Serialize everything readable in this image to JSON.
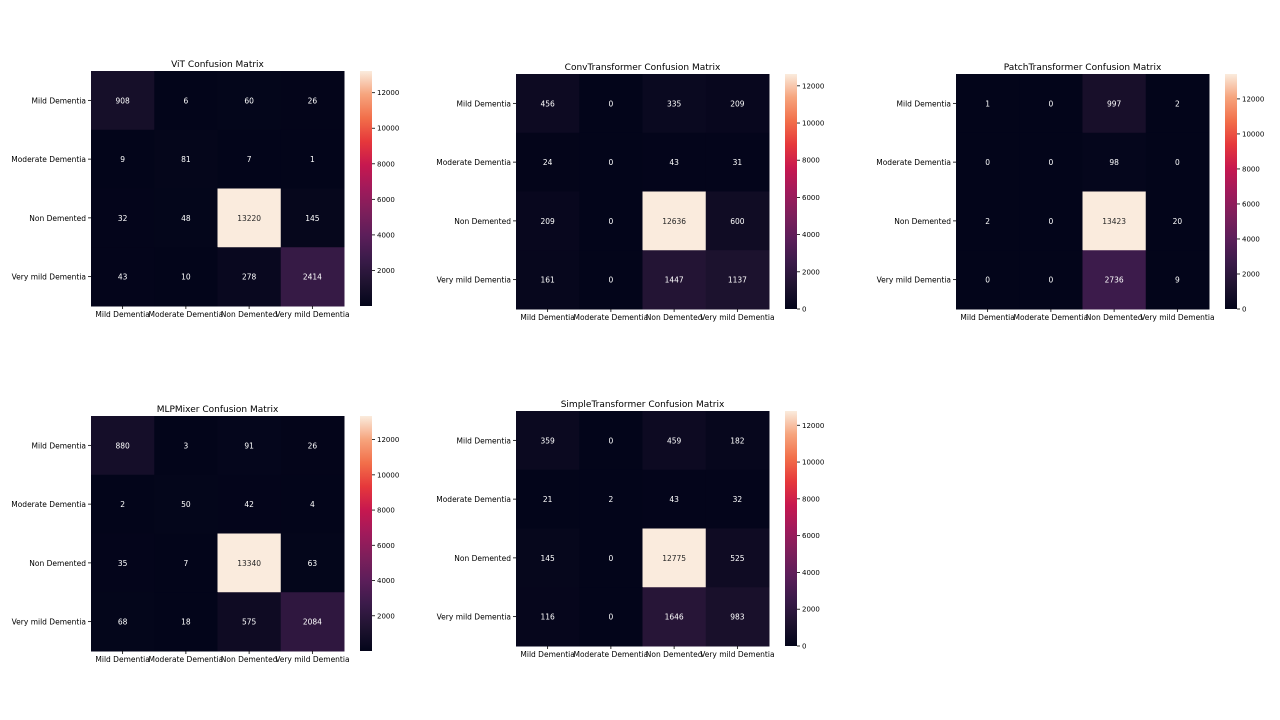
{
  "chart_data": [
    {
      "type": "heatmap",
      "title": "ViT Confusion Matrix",
      "row_labels": [
        "Mild Dementia",
        "Moderate Dementia",
        "Non Demented",
        "Very mild Dementia"
      ],
      "col_labels": [
        "Mild Dementia",
        "Moderate Dementia",
        "Non Demented",
        "Very mild Dementia"
      ],
      "values": [
        [
          908,
          6,
          60,
          26
        ],
        [
          9,
          81,
          7,
          1
        ],
        [
          32,
          48,
          13220,
          145
        ],
        [
          43,
          10,
          278,
          2414
        ]
      ],
      "colorbar_ticks": [
        2000,
        4000,
        6000,
        8000,
        10000,
        12000
      ],
      "colormap": "rocket",
      "vmin": 0,
      "vmax": 13220
    },
    {
      "type": "heatmap",
      "title": "ConvTransformer Confusion Matrix",
      "row_labels": [
        "Mild Dementia",
        "Moderate Dementia",
        "Non Demented",
        "Very mild Dementia"
      ],
      "col_labels": [
        "Mild Dementia",
        "Moderate Dementia",
        "Non Demented",
        "Very mild Dementia"
      ],
      "values": [
        [
          456,
          0,
          335,
          209
        ],
        [
          24,
          0,
          43,
          31
        ],
        [
          209,
          0,
          12636,
          600
        ],
        [
          161,
          0,
          1447,
          1137
        ]
      ],
      "colorbar_ticks": [
        0,
        2000,
        4000,
        6000,
        8000,
        10000,
        12000
      ],
      "colormap": "rocket",
      "vmin": 0,
      "vmax": 12636
    },
    {
      "type": "heatmap",
      "title": "PatchTransformer Confusion Matrix",
      "row_labels": [
        "Mild Dementia",
        "Moderate Dementia",
        "Non Demented",
        "Very mild Dementia"
      ],
      "col_labels": [
        "Mild Dementia",
        "Moderate Dementia",
        "Non Demented",
        "Very mild Dementia"
      ],
      "values": [
        [
          1,
          0,
          997,
          2
        ],
        [
          0,
          0,
          98,
          0
        ],
        [
          2,
          0,
          13423,
          20
        ],
        [
          0,
          0,
          2736,
          9
        ]
      ],
      "colorbar_ticks": [
        0,
        2000,
        4000,
        6000,
        8000,
        10000,
        12000
      ],
      "colormap": "rocket",
      "vmin": 0,
      "vmax": 13423
    },
    {
      "type": "heatmap",
      "title": "MLPMixer Confusion Matrix",
      "row_labels": [
        "Mild Dementia",
        "Moderate Dementia",
        "Non Demented",
        "Very mild Dementia"
      ],
      "col_labels": [
        "Mild Dementia",
        "Moderate Dementia",
        "Non Demented",
        "Very mild Dementia"
      ],
      "values": [
        [
          880,
          3,
          91,
          26
        ],
        [
          2,
          50,
          42,
          4
        ],
        [
          35,
          7,
          13340,
          63
        ],
        [
          68,
          18,
          575,
          2084
        ]
      ],
      "colorbar_ticks": [
        2000,
        4000,
        6000,
        8000,
        10000,
        12000
      ],
      "colormap": "rocket",
      "vmin": 0,
      "vmax": 13340
    },
    {
      "type": "heatmap",
      "title": "SimpleTransformer Confusion Matrix",
      "row_labels": [
        "Mild Dementia",
        "Moderate Dementia",
        "Non Demented",
        "Very mild Dementia"
      ],
      "col_labels": [
        "Mild Dementia",
        "Moderate Dementia",
        "Non Demented",
        "Very mild Dementia"
      ],
      "values": [
        [
          359,
          0,
          459,
          182
        ],
        [
          21,
          2,
          43,
          32
        ],
        [
          145,
          0,
          12775,
          525
        ],
        [
          116,
          0,
          1646,
          983
        ]
      ],
      "colorbar_ticks": [
        0,
        2000,
        4000,
        6000,
        8000,
        10000,
        12000
      ],
      "colormap": "rocket",
      "vmin": 0,
      "vmax": 12775
    }
  ]
}
